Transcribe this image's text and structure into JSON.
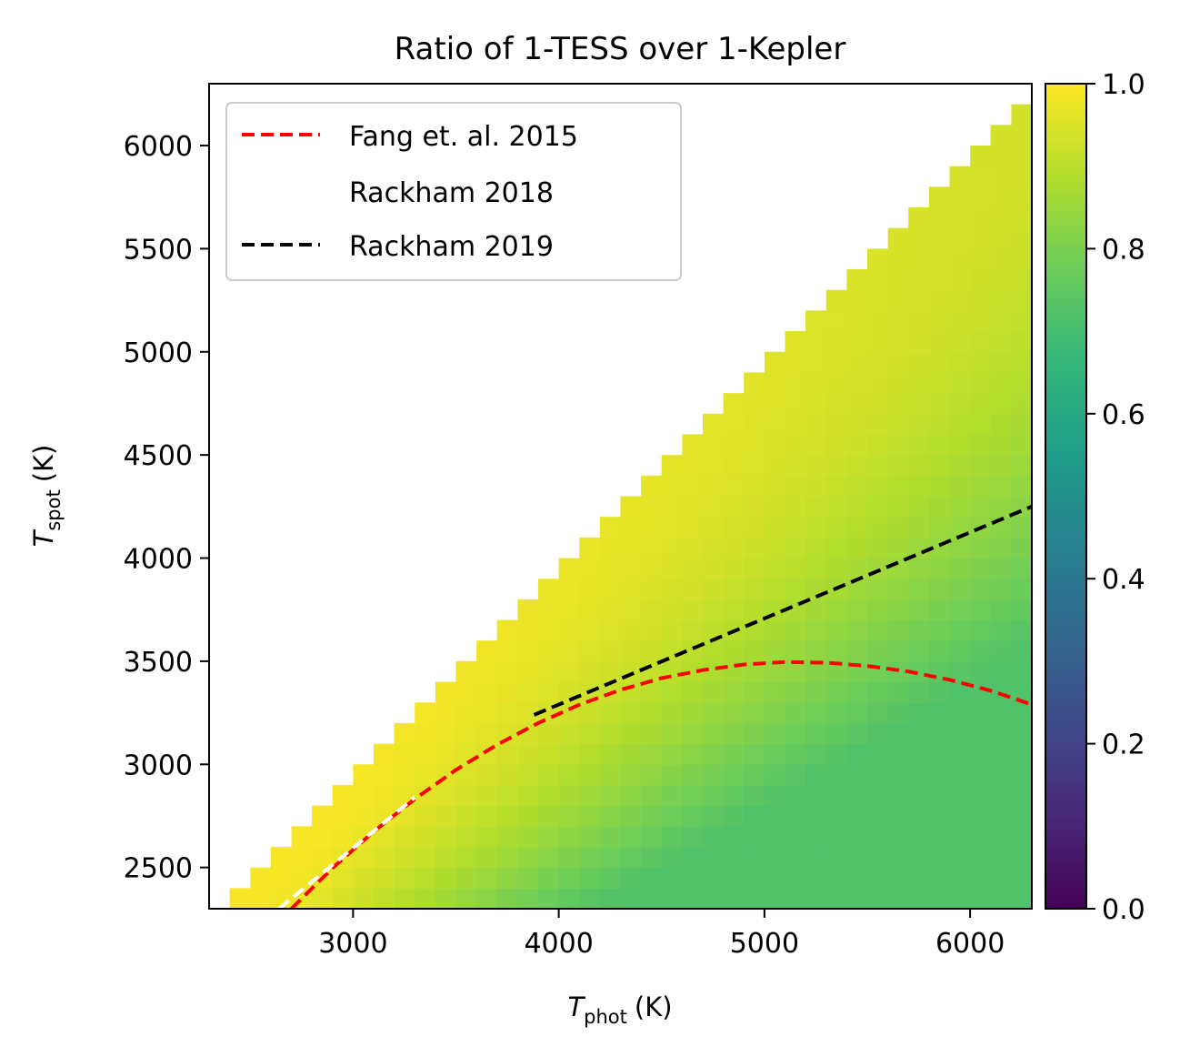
{
  "chart_data": {
    "type": "heatmap",
    "title": "Ratio of 1-TESS over 1-Kepler",
    "xlabel": {
      "symbol": "T",
      "subscript": "phot",
      "unit": "(K)"
    },
    "ylabel": {
      "symbol": "T",
      "subscript": "spot",
      "unit": "(K)"
    },
    "xlim": [
      2300,
      6300
    ],
    "ylim": [
      2300,
      6300
    ],
    "xticks": [
      3000,
      4000,
      5000,
      6000
    ],
    "yticks": [
      2500,
      3000,
      3500,
      4000,
      4500,
      5000,
      5500,
      6000
    ],
    "grid_step": 100,
    "grid_start": 2400,
    "colormap": "viridis",
    "colorbar": {
      "range": [
        0.0,
        1.0
      ],
      "ticks": [
        "0.0",
        "0.2",
        "0.4",
        "0.6",
        "0.8",
        "1.0"
      ]
    },
    "legend": {
      "placement": "top-left",
      "entries": [
        {
          "label": "Fang et. al. 2015",
          "color": "#ff0000",
          "style": "dashed"
        },
        {
          "label": "Rackham 2018",
          "color": "#ffffff",
          "style": "dashed"
        },
        {
          "label": "Rackham 2019",
          "color": "#000000",
          "style": "dashed"
        }
      ]
    },
    "series": [
      {
        "name": "Fang et. al. 2015",
        "color": "#ff0000",
        "x": [
          2700,
          2900,
          3100,
          3300,
          3500,
          3700,
          3900,
          4100,
          4300,
          4500,
          4700,
          4900,
          5100,
          5300,
          5500,
          5700,
          5900,
          6100,
          6300
        ],
        "y": [
          2300,
          2497,
          2674,
          2832,
          2973,
          3095,
          3200,
          3289,
          3361,
          3418,
          3457,
          3484,
          3496,
          3493,
          3477,
          3450,
          3410,
          3357,
          3290
        ]
      },
      {
        "name": "Rackham 2018",
        "color": "#ffffff",
        "x": [
          2640,
          3300
        ],
        "y": [
          2300,
          2840
        ]
      },
      {
        "name": "Rackham 2019",
        "color": "#000000",
        "x": [
          3880,
          6300
        ],
        "y": [
          3240,
          4250
        ]
      }
    ]
  }
}
